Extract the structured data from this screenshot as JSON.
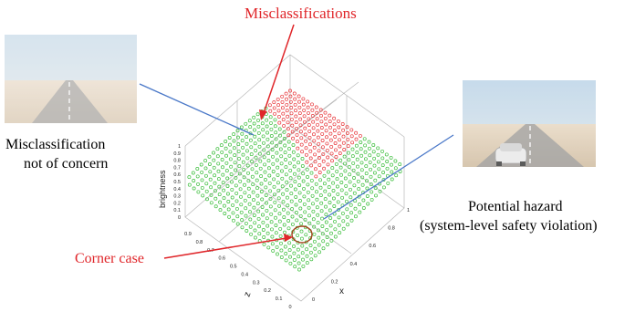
{
  "annotations": {
    "misclassifications": "Misclassifications",
    "corner_case": "Corner case",
    "left_caption_line1": "Misclassification",
    "left_caption_line2": "not of concern",
    "right_caption_line1": "Potential hazard",
    "right_caption_line2": "(system-level safety violation)"
  },
  "axes": {
    "z_label": "brightness",
    "x_label": "x",
    "y_label": "z",
    "z_ticks": [
      "0",
      "0.1",
      "0.2",
      "0.3",
      "0.4",
      "0.5",
      "0.6",
      "0.7",
      "0.8",
      "0.9",
      "1"
    ],
    "left_ticks": [
      "0",
      "0.1",
      "0.2",
      "0.3",
      "0.4",
      "0.5",
      "0.6",
      "0.7",
      "0.8",
      "0.9"
    ],
    "right_ticks": [
      "0",
      "0.2",
      "0.4",
      "0.6",
      "0.8",
      "1"
    ]
  },
  "images": {
    "left": "empty-road-photo",
    "right": "road-with-car-photo"
  },
  "colors": {
    "annotation_red": "#e0262a",
    "misclassified_point": "#e8383c",
    "correct_point": "#3fbf3f",
    "leader_line": "#4a78c8",
    "corner_circle": "#a0401a"
  }
}
